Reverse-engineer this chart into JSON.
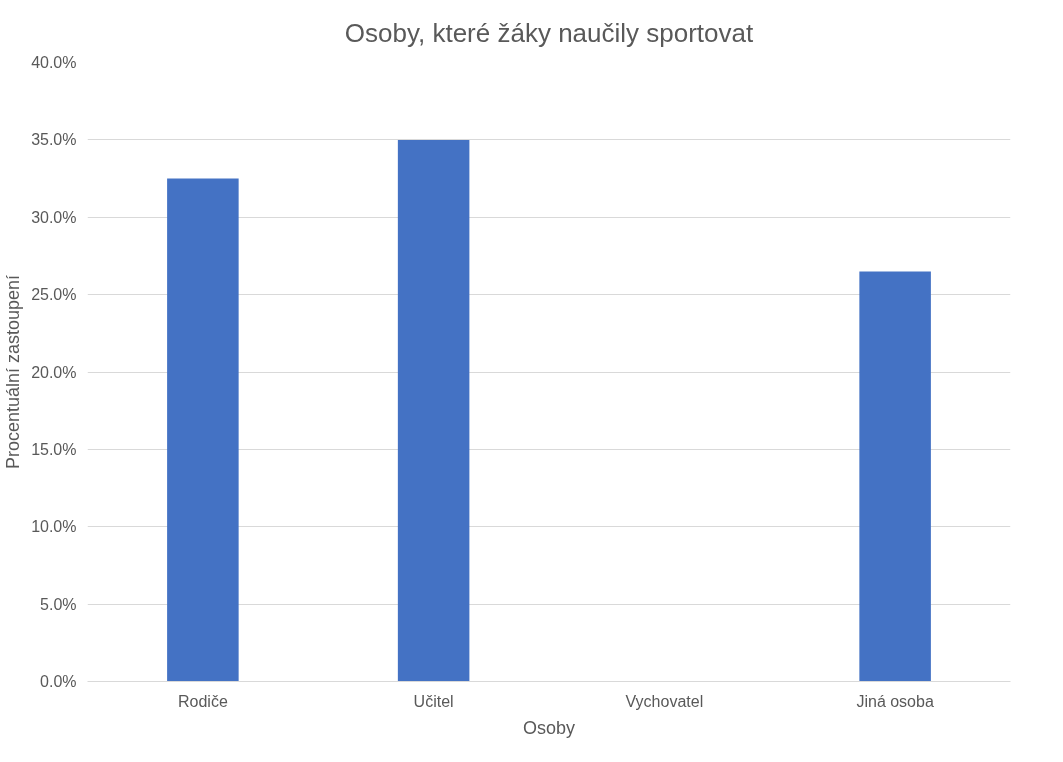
{
  "chart_data": {
    "type": "bar",
    "title": "Osoby, které žáky naučily sportovat",
    "xlabel": "Osoby",
    "ylabel": "Procentuální zastoupení",
    "categories": [
      "Rodiče",
      "Učitel",
      "Vychovatel",
      "Jiná osoba"
    ],
    "values": [
      32.5,
      35.0,
      0,
      26.5
    ],
    "color": "#4472c4",
    "ylim": [
      0,
      40
    ],
    "yticks": [
      {
        "value": 0,
        "label": "0.0%"
      },
      {
        "value": 5,
        "label": "5.0%"
      },
      {
        "value": 10,
        "label": "10.0%"
      },
      {
        "value": 15,
        "label": "15.0%"
      },
      {
        "value": 20,
        "label": "20.0%"
      },
      {
        "value": 25,
        "label": "25.0%"
      },
      {
        "value": 30,
        "label": "30.0%"
      },
      {
        "value": 35,
        "label": "35.0%"
      },
      {
        "value": 40,
        "label": "40.0%"
      }
    ],
    "grid": "y"
  }
}
